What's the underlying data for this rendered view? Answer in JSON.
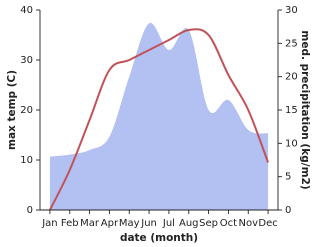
{
  "chart_data": {
    "type": "line",
    "x_label": "date (month)",
    "y_label": "max temp (C)",
    "y2_label": "med. precipitation (kg/m2)",
    "categories": [
      "Jan",
      "Feb",
      "Mar",
      "Apr",
      "May",
      "Jun",
      "Jul",
      "Aug",
      "Sep",
      "Oct",
      "Nov",
      "Dec"
    ],
    "series": [
      {
        "type": "area",
        "axis": "y2",
        "color": "#b3c0f2",
        "values": [
          8,
          8.3,
          9,
          11,
          20,
          28,
          24,
          27,
          15,
          16.5,
          12,
          11.5
        ]
      },
      {
        "type": "line",
        "axis": "y",
        "color": "#c0525a",
        "values": [
          0,
          8,
          18,
          28,
          30,
          32,
          34,
          36,
          35,
          27,
          20,
          9.5
        ]
      }
    ],
    "ylim": [
      0,
      40
    ],
    "yticks": [
      0,
      10,
      20,
      30,
      40
    ],
    "y2lim": [
      0,
      30
    ],
    "y2ticks": [
      0,
      5,
      10,
      15,
      20,
      25,
      30
    ]
  }
}
